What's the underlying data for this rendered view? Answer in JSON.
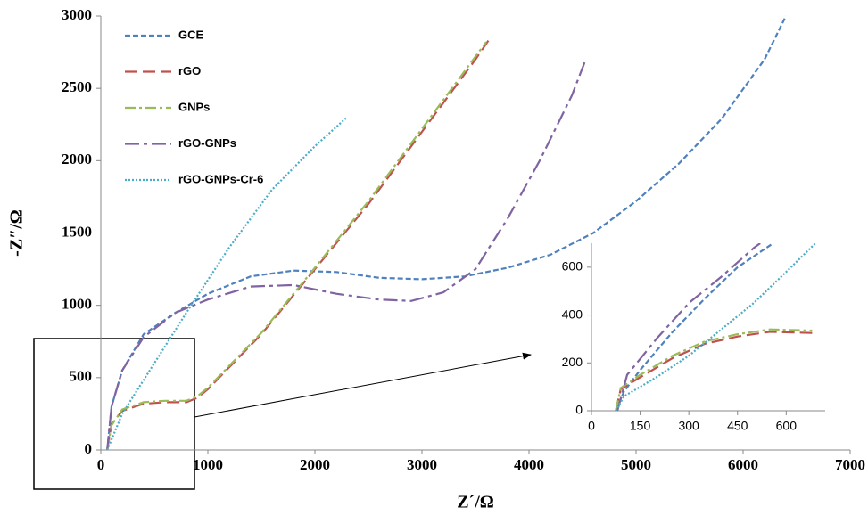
{
  "chart_data": [
    {
      "type": "line",
      "x_label": "Z´/Ω",
      "y_label": "-Z″/Ω",
      "legend": "top-left",
      "xlim": [
        0,
        7000
      ],
      "xticks": [
        0,
        1000,
        2000,
        3000,
        4000,
        5000,
        6000,
        7000
      ],
      "ylim": [
        0,
        3000
      ],
      "yticks": [
        0,
        500,
        1000,
        1500,
        2000,
        2500,
        3000
      ],
      "series": [
        {
          "name": "GCE",
          "color": "#4f81bd",
          "line_style": "dashed",
          "x": [
            60,
            100,
            200,
            400,
            700,
            1000,
            1400,
            1800,
            2200,
            2600,
            3000,
            3400,
            3800,
            4200,
            4600,
            5000,
            5400,
            5800,
            6200,
            6400
          ],
          "values": [
            0,
            300,
            550,
            800,
            950,
            1080,
            1200,
            1240,
            1230,
            1190,
            1180,
            1200,
            1260,
            1350,
            1500,
            1720,
            1980,
            2290,
            2700,
            3000
          ]
        },
        {
          "name": "rGO",
          "color": "#c0504d",
          "line_style": "long-dash",
          "x": [
            60,
            100,
            200,
            400,
            600,
            800,
            900,
            1000,
            1500,
            2000,
            2500,
            3000,
            3500,
            3620
          ],
          "values": [
            0,
            180,
            270,
            320,
            330,
            330,
            360,
            420,
            800,
            1250,
            1700,
            2200,
            2700,
            2830
          ]
        },
        {
          "name": "GNPs",
          "color": "#9bbb59",
          "line_style": "dash-dot",
          "x": [
            60,
            100,
            200,
            400,
            600,
            800,
            900,
            1000,
            1500,
            2000,
            2500,
            3000,
            3600
          ],
          "values": [
            0,
            170,
            280,
            330,
            340,
            340,
            370,
            430,
            810,
            1260,
            1720,
            2220,
            2820
          ]
        },
        {
          "name": "rGO-GNPs",
          "color": "#8064a2",
          "line_style": "long-dash-dot",
          "x": [
            60,
            100,
            200,
            400,
            700,
            1000,
            1400,
            1800,
            2200,
            2600,
            2900,
            3200,
            3500,
            3800,
            4100,
            4400,
            4520
          ],
          "values": [
            0,
            300,
            550,
            780,
            950,
            1040,
            1130,
            1140,
            1080,
            1040,
            1030,
            1090,
            1250,
            1600,
            2000,
            2450,
            2680
          ]
        },
        {
          "name": "rGO-GNPs-Cr-6",
          "color": "#4bacc6",
          "line_style": "dotted",
          "x": [
            60,
            200,
            500,
            800,
            1200,
            1600,
            2000,
            2300
          ],
          "values": [
            0,
            250,
            600,
            950,
            1400,
            1800,
            2100,
            2300
          ]
        }
      ]
    },
    {
      "type": "line",
      "xlim": [
        0,
        720
      ],
      "xticks": [
        0,
        150,
        300,
        450,
        600
      ],
      "ylim": [
        0,
        700
      ],
      "yticks": [
        0,
        200,
        400,
        600
      ],
      "series": [
        {
          "color": "#4f81bd",
          "line_style": "dashed",
          "x": [
            75,
            100,
            150,
            250,
            350,
            450,
            560
          ],
          "values": [
            0,
            80,
            170,
            330,
            470,
            600,
            700
          ]
        },
        {
          "color": "#c0504d",
          "line_style": "long-dash",
          "x": [
            75,
            90,
            150,
            250,
            350,
            450,
            550,
            680
          ],
          "values": [
            0,
            90,
            140,
            220,
            280,
            310,
            330,
            325
          ]
        },
        {
          "color": "#9bbb59",
          "line_style": "dash-dot",
          "x": [
            75,
            90,
            150,
            250,
            350,
            450,
            550,
            680
          ],
          "values": [
            0,
            95,
            150,
            230,
            290,
            320,
            340,
            335
          ]
        },
        {
          "color": "#8064a2",
          "line_style": "long-dash-dot",
          "x": [
            80,
            110,
            200,
            300,
            400,
            500,
            520
          ],
          "values": [
            0,
            150,
            300,
            450,
            560,
            680,
            700
          ]
        },
        {
          "color": "#4bacc6",
          "line_style": "dotted",
          "x": [
            75,
            100,
            200,
            300,
            400,
            500,
            600,
            690
          ],
          "values": [
            0,
            60,
            140,
            230,
            340,
            450,
            580,
            700
          ]
        }
      ]
    }
  ]
}
